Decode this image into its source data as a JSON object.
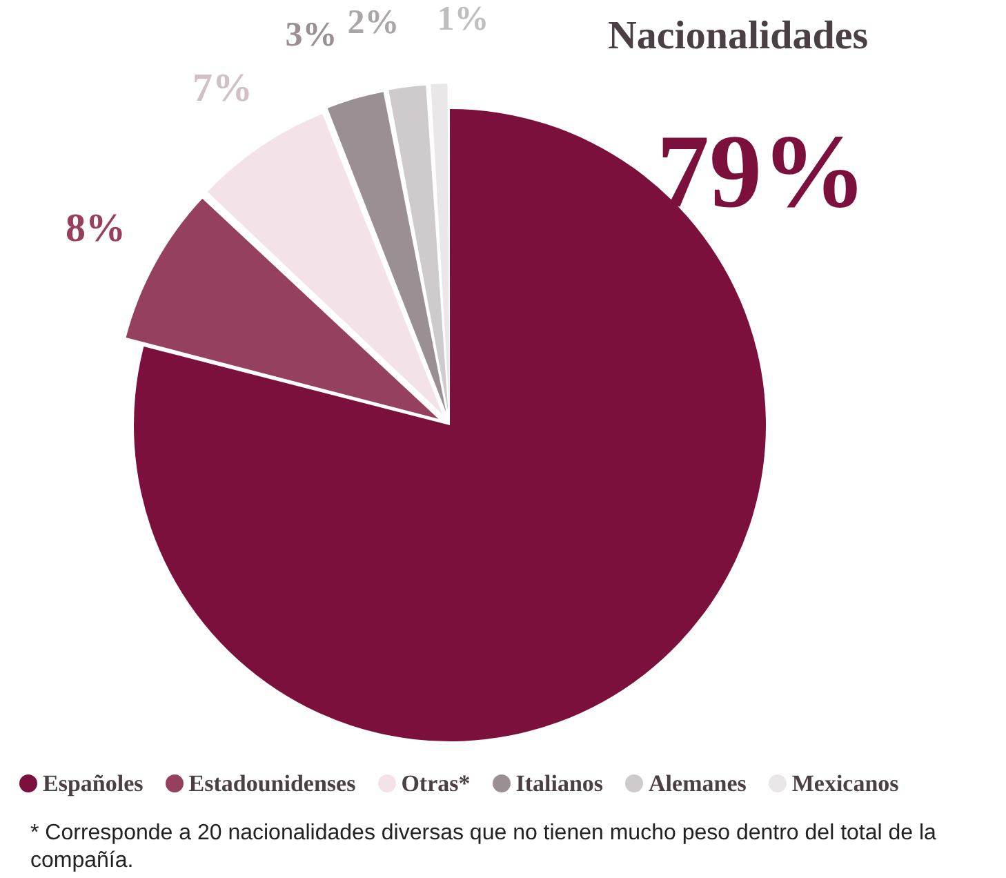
{
  "chart_data": {
    "type": "pie",
    "title": "Nacionalidades",
    "categories": [
      "Españoles",
      "Estadounidenses",
      "Otras*",
      "Italianos",
      "Alemanes",
      "Mexicanos"
    ],
    "values": [
      79,
      8,
      7,
      3,
      2,
      1
    ],
    "colors": [
      "#7b103c",
      "#96405f",
      "#f3e3e8",
      "#9a8f93",
      "#cfcacc",
      "#e9e7e8"
    ],
    "value_labels": [
      "79%",
      "8%",
      "7%",
      "3%",
      "2%",
      "1%"
    ],
    "legend": "bottom",
    "annotations": [
      "* Corresponde a 20 nacionalidades diversas que no tienen mucho peso dentro del total de la compañía."
    ]
  }
}
